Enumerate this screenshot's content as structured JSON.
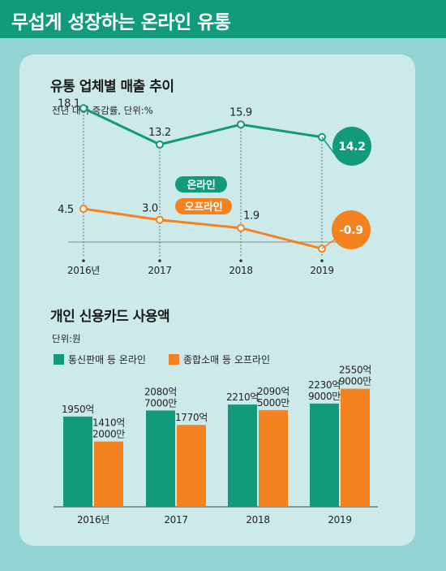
{
  "header": {
    "title": "무섭게 성장하는 온라인 유통"
  },
  "colors": {
    "online": "#119a7c",
    "offline": "#f58220",
    "background": "#93d3d3",
    "panel": "#cdeaea"
  },
  "chart_data": [
    {
      "type": "line",
      "title": "유통 업체별 매출 추이",
      "subtitle": "전년 대비 증감률, 단위:%",
      "categories": [
        "2016년",
        "2017",
        "2018",
        "2019"
      ],
      "series": [
        {
          "name": "온라인",
          "values": [
            18.1,
            13.2,
            15.9,
            14.2
          ],
          "labels": [
            "18.1",
            "13.2",
            "15.9",
            "14.2"
          ]
        },
        {
          "name": "오프라인",
          "values": [
            4.5,
            3.0,
            1.9,
            -0.9
          ],
          "labels": [
            "4.5",
            "3.0",
            "1.9",
            "-0.9"
          ]
        }
      ]
    },
    {
      "type": "bar",
      "title": "개인 신용카드 사용액",
      "subtitle": "단위:원",
      "categories": [
        "2016년",
        "2017",
        "2018",
        "2019"
      ],
      "legend": [
        "통신판매 등 온라인",
        "종합소매 등 오프라인"
      ],
      "series": [
        {
          "name": "통신판매 등 온라인",
          "values": [
            1950,
            2080.7,
            2210,
            2230.9
          ],
          "labels": [
            [
              "1950억"
            ],
            [
              "2080억",
              "7000만"
            ],
            [
              "2210억"
            ],
            [
              "2230억",
              "9000만"
            ]
          ]
        },
        {
          "name": "종합소매 등 오프라인",
          "values": [
            1410.2,
            1770,
            2090.5,
            2550.9
          ],
          "labels": [
            [
              "1410억",
              "2000만"
            ],
            [
              "1770억"
            ],
            [
              "2090억",
              "5000만"
            ],
            [
              "2550억",
              "9000만"
            ]
          ]
        }
      ]
    }
  ]
}
